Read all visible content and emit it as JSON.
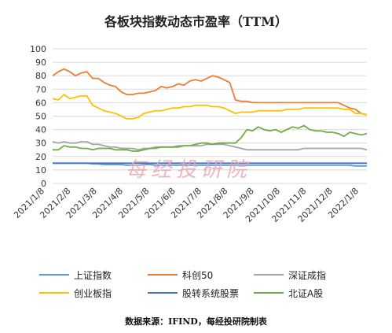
{
  "chart_data": {
    "type": "line",
    "title": "各板块指数动态市盈率（TTM）",
    "ylim": [
      0,
      100
    ],
    "yticks": [
      0,
      10,
      20,
      30,
      40,
      50,
      60,
      70,
      80,
      90,
      100
    ],
    "x_tick_labels": [
      "2021/1/8",
      "2021/2/8",
      "2021/3/8",
      "2021/4/8",
      "2021/5/8",
      "2021/6/8",
      "2021/7/8",
      "2021/8/8",
      "2021/9/8",
      "2021/10/8",
      "2021/11/8",
      "2021/12/8",
      "2022/1/8"
    ],
    "points_per_series": 56,
    "grid": true,
    "legend_position": "bottom",
    "series": [
      {
        "name": "上证指数",
        "color": "#5b9bd5",
        "values": [
          15,
          15,
          15,
          15,
          15,
          15,
          15,
          14.5,
          14.5,
          14,
          14,
          14,
          14,
          13.5,
          13.5,
          13.5,
          14,
          14,
          13.5,
          13.5,
          13.5,
          13.5,
          13.5,
          13.5,
          13.5,
          13.5,
          13.5,
          13.5,
          13.5,
          13.5,
          13.5,
          13.5,
          13.5,
          13.5,
          13.5,
          13.5,
          13.5,
          13.5,
          13.5,
          13.5,
          13.5,
          13.5,
          13.5,
          13.5,
          13.5,
          13.5,
          13.5,
          13.5,
          13.5,
          13.5,
          13.5,
          13.5,
          13.5,
          13,
          13,
          13
        ]
      },
      {
        "name": "科创50",
        "color": "#ed7d31",
        "values": [
          80,
          83,
          85,
          83,
          80,
          82,
          83,
          78,
          78,
          75,
          73,
          72,
          68,
          66,
          66,
          67,
          67,
          68,
          69,
          72,
          71,
          72,
          74,
          73,
          76,
          77,
          76,
          78,
          80,
          79,
          77,
          75,
          62,
          61,
          61,
          60,
          60,
          60,
          60,
          60,
          60,
          60,
          60,
          60,
          60,
          60,
          60,
          60,
          60,
          60,
          60,
          58,
          56,
          55,
          52,
          51
        ]
      },
      {
        "name": "深证成指",
        "color": "#a5a5a5",
        "values": [
          31,
          30,
          31,
          30,
          30,
          31,
          31,
          29,
          29,
          28,
          27,
          27,
          26,
          26,
          26,
          25,
          26,
          26,
          27,
          27,
          27,
          27,
          28,
          28,
          28,
          28,
          28,
          29,
          29,
          29,
          29,
          28,
          27,
          26,
          25,
          25,
          25,
          25,
          25,
          25,
          25,
          25,
          25,
          25,
          26,
          26,
          26,
          26,
          26,
          26,
          26,
          26,
          26,
          26,
          26,
          25
        ]
      },
      {
        "name": "创业板指",
        "color": "#ffc000",
        "values": [
          63,
          62,
          66,
          63,
          64,
          65,
          65,
          58,
          56,
          54,
          53,
          52,
          50,
          48,
          48,
          49,
          52,
          53,
          54,
          54,
          55,
          56,
          56,
          57,
          57,
          58,
          58,
          58,
          57,
          57,
          56,
          54,
          52,
          53,
          53,
          53,
          54,
          54,
          54,
          54,
          54,
          55,
          55,
          55,
          56,
          56,
          56,
          56,
          56,
          56,
          56,
          55,
          55,
          52,
          52,
          51
        ]
      },
      {
        "name": "股转系统股票",
        "color": "#4472c4",
        "values": [
          15,
          15,
          15,
          15,
          15,
          15,
          15,
          15,
          15,
          15,
          15,
          15,
          15,
          15,
          15,
          15,
          15,
          15,
          15,
          15,
          15,
          15,
          15,
          15,
          15,
          15,
          15,
          15,
          15,
          15,
          15,
          15,
          15,
          15,
          15,
          15,
          15,
          15,
          15,
          15,
          15,
          15,
          15,
          15,
          15,
          15,
          15,
          15,
          15,
          15,
          15,
          15,
          15,
          15,
          15,
          15
        ]
      },
      {
        "name": "北证A股",
        "color": "#70ad47",
        "values": [
          25,
          25,
          28,
          27,
          27,
          26,
          26,
          25,
          26,
          26,
          26,
          25,
          25,
          25,
          24,
          24,
          25,
          26,
          26,
          27,
          27,
          27,
          27,
          28,
          28,
          29,
          30,
          30,
          29,
          30,
          30,
          30,
          30,
          34,
          40,
          39,
          42,
          40,
          39,
          40,
          38,
          40,
          42,
          41,
          43,
          40,
          39,
          39,
          38,
          38,
          37,
          35,
          38,
          37,
          36,
          37
        ]
      }
    ]
  },
  "watermark": "每经投研院",
  "footer": "数据来源：IFIND，每经投研院制表"
}
